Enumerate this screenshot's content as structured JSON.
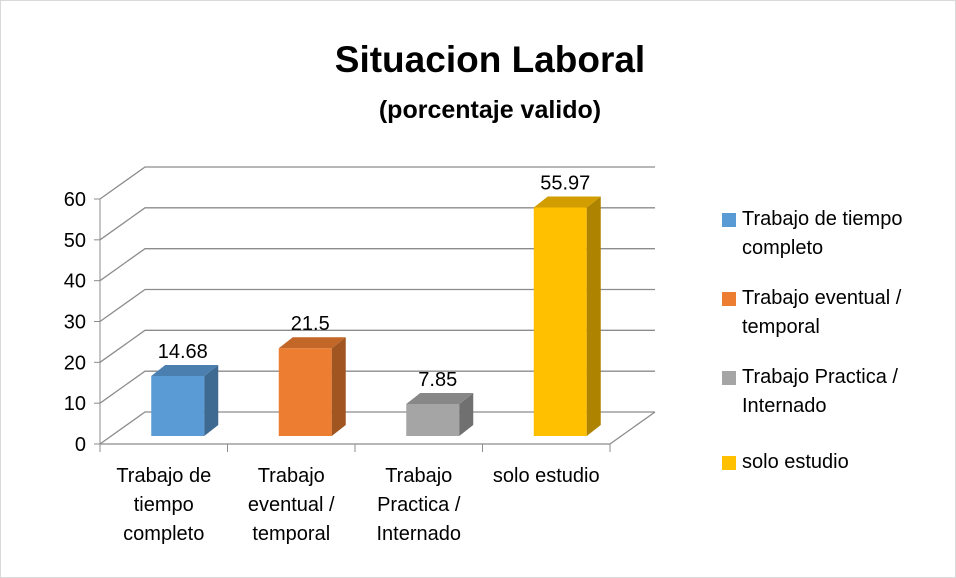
{
  "chart_data": {
    "type": "bar3d",
    "title": "Situacion Laboral",
    "subtitle": "(porcentaje valido)",
    "categories": [
      "Trabajo de tiempo completo",
      "Trabajo eventual / temporal",
      "Trabajo Practica / Internado",
      "solo estudio"
    ],
    "values": [
      14.68,
      21.5,
      7.85,
      55.97
    ],
    "colors": [
      "#5b9bd5",
      "#ed7d31",
      "#a5a5a5",
      "#ffc000"
    ],
    "ylim": [
      0,
      60
    ],
    "yticks": [
      0,
      10,
      20,
      30,
      40,
      50,
      60
    ],
    "grid": true,
    "legend": "right"
  }
}
